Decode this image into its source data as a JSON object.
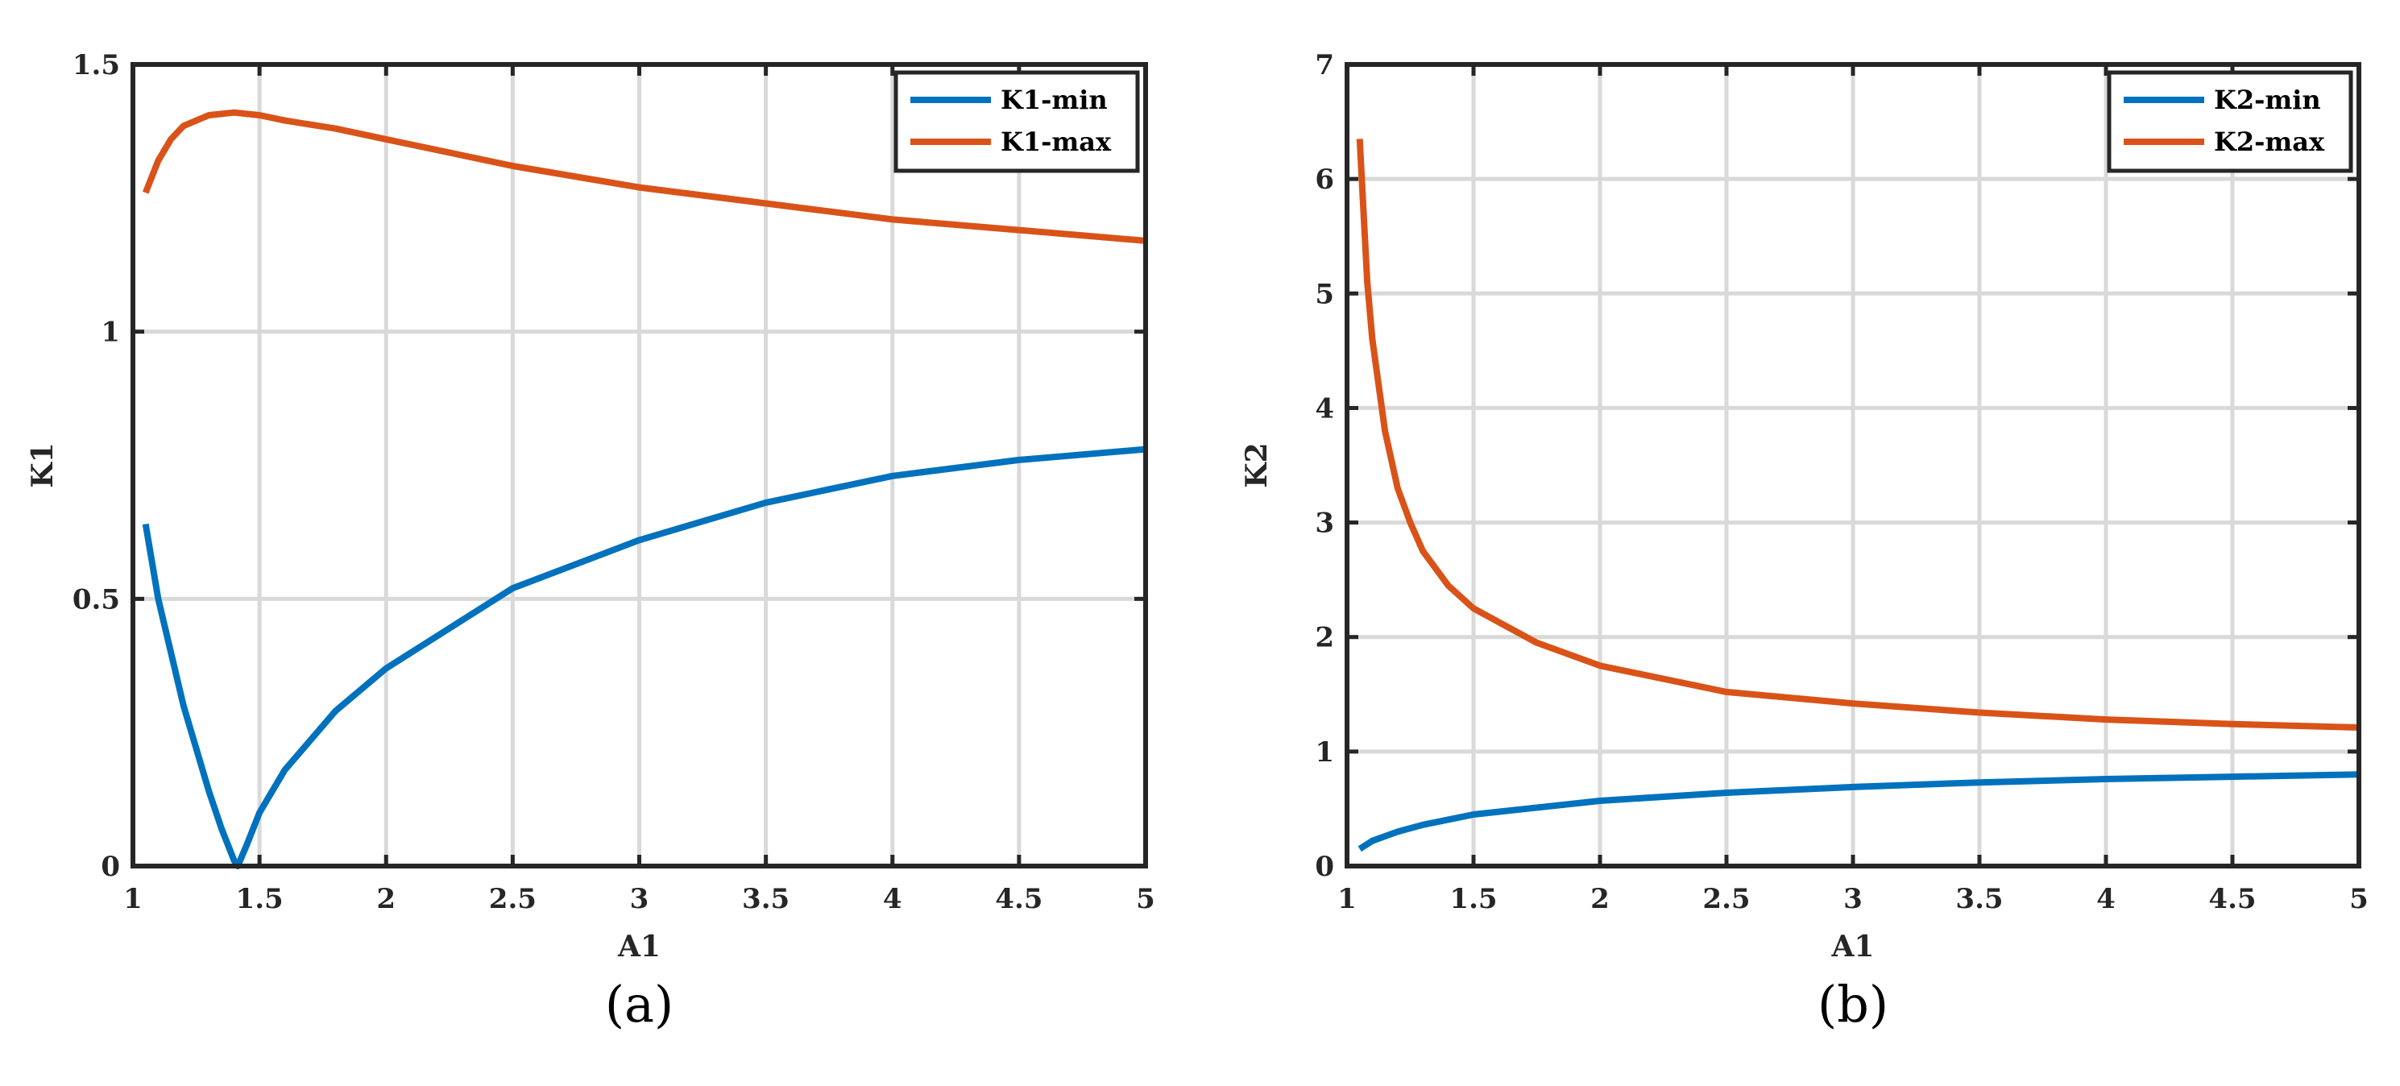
{
  "chart_data": [
    {
      "type": "line",
      "panel_label": "(a)",
      "xlabel": "A1",
      "ylabel": "K1",
      "xlim": [
        1,
        5
      ],
      "ylim": [
        0,
        1.5
      ],
      "xticks": [
        "1",
        "1.5",
        "2",
        "2.5",
        "3",
        "3.5",
        "4",
        "4.5",
        "5"
      ],
      "yticks": [
        "0",
        "0.5",
        "1",
        "1.5"
      ],
      "grid": true,
      "legend_position": "top-right",
      "series": [
        {
          "name": "K1-min",
          "color": "#0072BD",
          "x": [
            1.05,
            1.1,
            1.2,
            1.3,
            1.35,
            1.4,
            1.414,
            1.45,
            1.5,
            1.6,
            1.8,
            2.0,
            2.5,
            3.0,
            3.5,
            4.0,
            4.5,
            5.0
          ],
          "y": [
            0.64,
            0.5,
            0.3,
            0.14,
            0.07,
            0.01,
            0.0,
            0.04,
            0.1,
            0.18,
            0.29,
            0.37,
            0.52,
            0.61,
            0.68,
            0.73,
            0.76,
            0.78
          ]
        },
        {
          "name": "K1-max",
          "color": "#D95319",
          "x": [
            1.05,
            1.1,
            1.15,
            1.2,
            1.3,
            1.4,
            1.5,
            1.6,
            1.8,
            2.0,
            2.5,
            3.0,
            3.5,
            4.0,
            4.5,
            5.0
          ],
          "y": [
            1.26,
            1.32,
            1.36,
            1.385,
            1.405,
            1.41,
            1.405,
            1.395,
            1.38,
            1.36,
            1.31,
            1.27,
            1.24,
            1.21,
            1.19,
            1.17
          ]
        }
      ]
    },
    {
      "type": "line",
      "panel_label": "(b)",
      "xlabel": "A1",
      "ylabel": "K2",
      "xlim": [
        1,
        5
      ],
      "ylim": [
        0,
        7
      ],
      "xticks": [
        "1",
        "1.5",
        "2",
        "2.5",
        "3",
        "3.5",
        "4",
        "4.5",
        "5"
      ],
      "yticks": [
        "0",
        "1",
        "2",
        "3",
        "4",
        "5",
        "6",
        "7"
      ],
      "grid": true,
      "legend_position": "top-right",
      "series": [
        {
          "name": "K2-min",
          "color": "#0072BD",
          "x": [
            1.05,
            1.1,
            1.2,
            1.3,
            1.5,
            2.0,
            2.5,
            3.0,
            3.5,
            4.0,
            4.5,
            5.0
          ],
          "y": [
            0.15,
            0.22,
            0.3,
            0.36,
            0.45,
            0.57,
            0.64,
            0.69,
            0.73,
            0.76,
            0.78,
            0.8
          ]
        },
        {
          "name": "K2-max",
          "color": "#D95319",
          "x": [
            1.05,
            1.08,
            1.1,
            1.15,
            1.2,
            1.25,
            1.3,
            1.4,
            1.5,
            1.75,
            2.0,
            2.5,
            3.0,
            3.5,
            4.0,
            4.5,
            5.0
          ],
          "y": [
            6.35,
            5.1,
            4.6,
            3.8,
            3.3,
            3.0,
            2.75,
            2.45,
            2.25,
            1.95,
            1.75,
            1.52,
            1.42,
            1.34,
            1.28,
            1.24,
            1.21
          ]
        }
      ]
    }
  ]
}
